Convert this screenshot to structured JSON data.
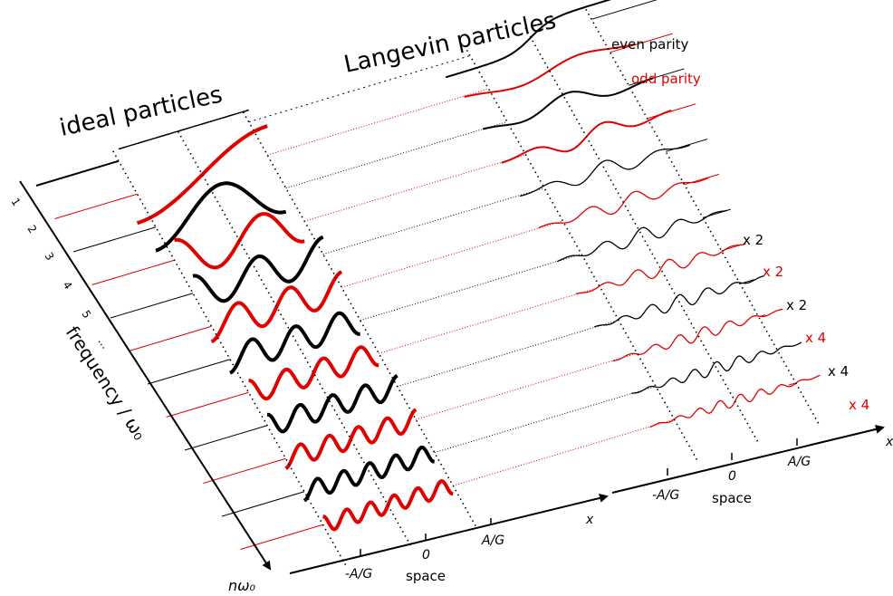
{
  "titles": {
    "ideal": "ideal particles",
    "langevin": "Langevin particles"
  },
  "legend": {
    "even": "even parity",
    "odd": "odd parity",
    "even_color": "#000000",
    "odd_color": "#e00000"
  },
  "left_axis": {
    "label": "frequency / ω₀",
    "n_label": "nω₀",
    "ticks": [
      "1",
      "2",
      "3",
      "4",
      "5",
      "…"
    ]
  },
  "space_axes": [
    {
      "var": "x",
      "ticks": [
        "-A/G",
        "0",
        "A/G"
      ],
      "label": "space"
    },
    {
      "var": "x",
      "ticks": [
        "-A/G",
        "0",
        "A/G"
      ],
      "label": "space"
    }
  ],
  "scale_labels": [
    {
      "text": "x 2",
      "color": "#000000"
    },
    {
      "text": "x 2",
      "color": "#e00000"
    },
    {
      "text": "x 2",
      "color": "#000000"
    },
    {
      "text": "x 4",
      "color": "#e00000"
    },
    {
      "text": "x 4",
      "color": "#000000"
    },
    {
      "text": "x 4",
      "color": "#e00000"
    }
  ],
  "rows": [
    {
      "n": 0,
      "parity": "even"
    },
    {
      "n": 1,
      "parity": "odd"
    },
    {
      "n": 2,
      "parity": "even"
    },
    {
      "n": 3,
      "parity": "odd"
    },
    {
      "n": 4,
      "parity": "even"
    },
    {
      "n": 5,
      "parity": "odd"
    },
    {
      "n": 6,
      "parity": "even"
    },
    {
      "n": 7,
      "parity": "odd"
    },
    {
      "n": 8,
      "parity": "even"
    },
    {
      "n": 9,
      "parity": "odd"
    },
    {
      "n": 10,
      "parity": "even"
    },
    {
      "n": 11,
      "parity": "odd"
    }
  ]
}
